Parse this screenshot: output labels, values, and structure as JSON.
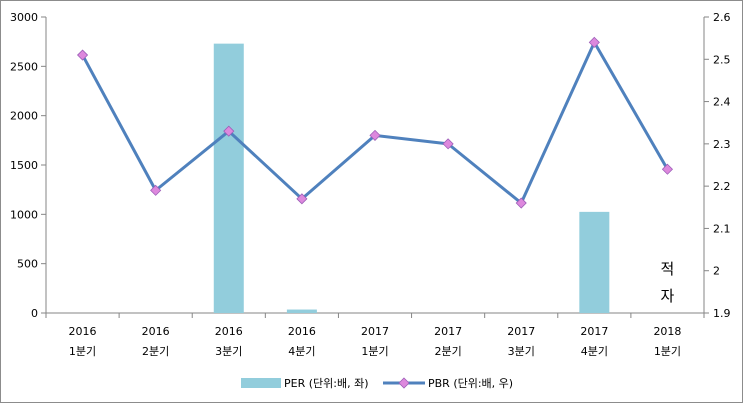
{
  "chart_data": {
    "type": "bar",
    "categories": [
      [
        "2016",
        "1분기"
      ],
      [
        "2016",
        "2분기"
      ],
      [
        "2016",
        "3분기"
      ],
      [
        "2016",
        "4분기"
      ],
      [
        "2017",
        "1분기"
      ],
      [
        "2017",
        "2분기"
      ],
      [
        "2017",
        "3분기"
      ],
      [
        "2017",
        "4분기"
      ],
      [
        "2018",
        "1분기"
      ]
    ],
    "series": [
      {
        "name": "PER (단위:배, 좌)",
        "type": "bar",
        "axis": "left",
        "color": "#92cddc",
        "values": [
          null,
          null,
          2730,
          35,
          null,
          null,
          null,
          1025,
          null
        ]
      },
      {
        "name": "PBR (단위:배, 우)",
        "type": "line",
        "axis": "right",
        "color": "#4f81bd",
        "marker_color": "#dd88dd",
        "values": [
          2.51,
          2.19,
          2.33,
          2.17,
          2.32,
          2.3,
          2.16,
          2.54,
          2.24
        ]
      }
    ],
    "y_left": {
      "min": 0,
      "max": 3000,
      "ticks": [
        "0",
        "500",
        "1000",
        "1500",
        "2000",
        "2500",
        "3000"
      ]
    },
    "y_right": {
      "min": 1.9,
      "max": 2.6,
      "ticks": [
        "1.9",
        "2",
        "2.1",
        "2.2",
        "2.3",
        "2.4",
        "2.5",
        "2.6"
      ]
    },
    "annotation": {
      "lines": [
        "적",
        "자"
      ],
      "category_index": 8
    },
    "legend_position": "bottom",
    "grid": false
  }
}
